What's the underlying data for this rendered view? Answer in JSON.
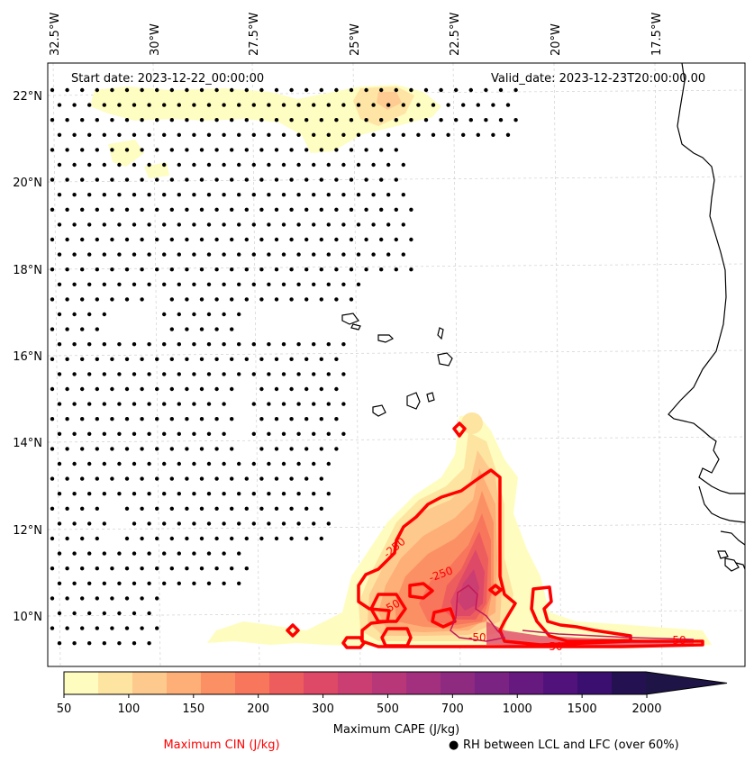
{
  "header": {
    "start_date": "Start date: 2023-12-22_00:00:00",
    "valid_date": "Valid_date: 2023-12-23T20:00:00.00"
  },
  "map": {
    "lon_labels": [
      "32.5°W",
      "30°W",
      "27.5°W",
      "25°W",
      "22.5°W",
      "20°W",
      "17.5°W"
    ],
    "lat_labels": [
      "22°N",
      "20°N",
      "18°N",
      "16°N",
      "14°N",
      "12°N",
      "10°N"
    ],
    "cin_contour_labels": [
      "-250",
      "-250",
      "-50",
      "-50",
      "-50",
      "-50"
    ],
    "cin_color": "#ff0000",
    "coastline_color": "#000000"
  },
  "colorbar": {
    "tick_labels": [
      "50",
      "100",
      "150",
      "200",
      "300",
      "500",
      "700",
      "1000",
      "1500",
      "2000"
    ],
    "colors": [
      "#fefdbf",
      "#fee4a1",
      "#fec98d",
      "#feae77",
      "#fc9065",
      "#f8765c",
      "#ee5d5d",
      "#de4968",
      "#cb3e71",
      "#b73779",
      "#a3307e",
      "#8f2a81",
      "#7b2382",
      "#66197f",
      "#51127c",
      "#3b0f70",
      "#231151"
    ],
    "extend_color": "#1e1446",
    "xlabel": "Maximum CAPE (J/kg)"
  },
  "legend": {
    "cin_label": "Maximum CIN (J/kg)",
    "rh_marker": "●",
    "rh_label": "RH between LCL and LFC (over 60%)"
  }
}
